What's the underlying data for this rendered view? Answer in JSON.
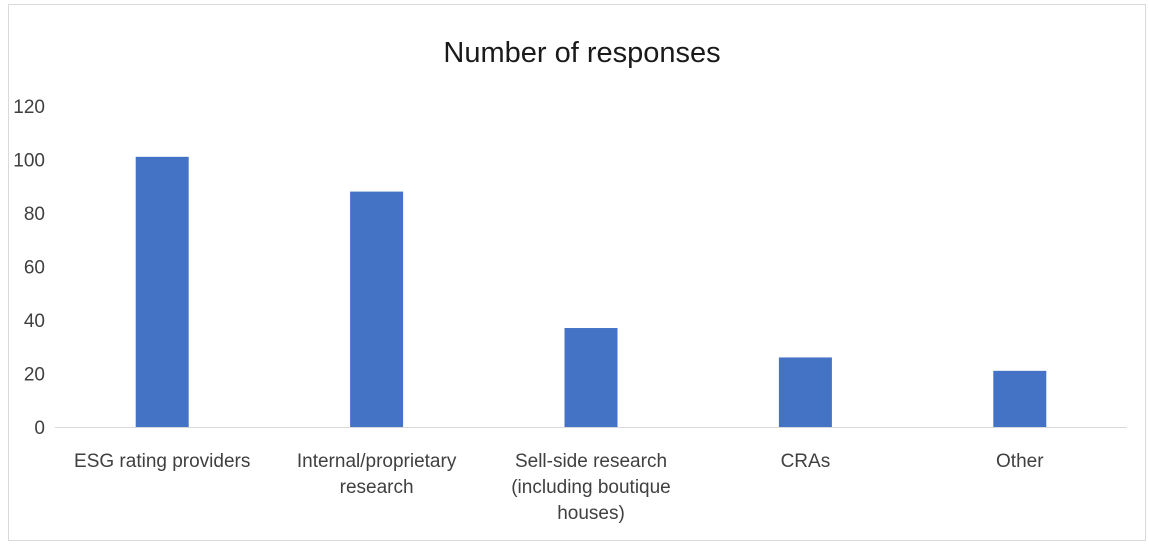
{
  "chart_data": {
    "type": "bar",
    "title": "Number of responses",
    "categories": [
      [
        "ESG rating providers"
      ],
      [
        "Internal/proprietary",
        "research"
      ],
      [
        "Sell-side research",
        "(including boutique",
        "houses)"
      ],
      [
        "CRAs"
      ],
      [
        "Other"
      ]
    ],
    "series": [
      {
        "values": [
          101,
          88,
          37,
          26,
          21
        ]
      }
    ],
    "ylim": [
      0,
      120
    ],
    "yticks": [
      0,
      20,
      40,
      60,
      80,
      100,
      120
    ],
    "xlabel": "",
    "ylabel": "",
    "grid": false,
    "legend": "none",
    "bar_color": "#4472c4",
    "axis_color": "#d9d9d9"
  }
}
